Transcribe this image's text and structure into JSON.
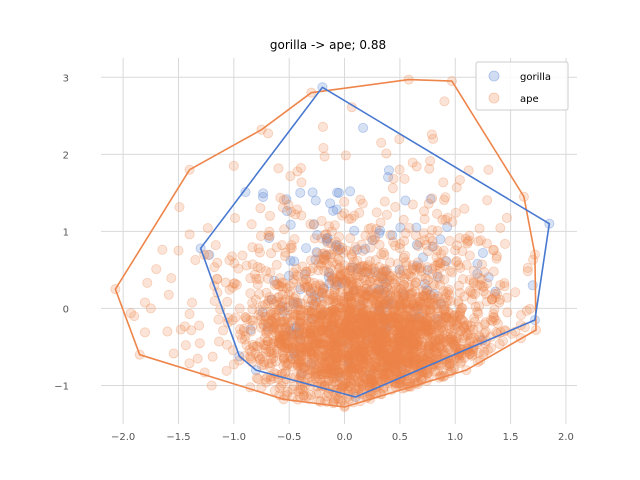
{
  "chart_data": {
    "type": "scatter",
    "title": "gorilla -> ape; 0.88",
    "xlabel": "",
    "ylabel": "",
    "xlim": [
      -2.2,
      2.1
    ],
    "ylim": [
      -1.5,
      3.25
    ],
    "x_ticks": [
      -2.0,
      -1.5,
      -1.0,
      -0.5,
      0.0,
      0.5,
      1.0,
      1.5,
      2.0
    ],
    "x_tick_labels": [
      "−2.0",
      "−1.5",
      "−1.0",
      "−0.5",
      "0.0",
      "0.5",
      "1.0",
      "1.5",
      "2.0"
    ],
    "y_ticks": [
      -1,
      0,
      1,
      2,
      3
    ],
    "y_tick_labels": [
      "−1",
      "0",
      "1",
      "2",
      "3"
    ],
    "grid": true,
    "legend_position": "top-right",
    "series": [
      {
        "name": "gorilla",
        "color": "#4878cf",
        "point_alpha": 0.22,
        "cloud": {
          "n": 140,
          "center": [
            0.05,
            0.3
          ],
          "spread": [
            0.55,
            0.75
          ],
          "seed": 11
        },
        "points": [
          [
            -0.2,
            2.87
          ],
          [
            1.85,
            1.1
          ],
          [
            1.72,
            -0.15
          ],
          [
            0.1,
            -1.15
          ],
          [
            -0.8,
            -0.8
          ],
          [
            -0.95,
            -0.62
          ],
          [
            -1.3,
            0.78
          ],
          [
            1.25,
            0.72
          ],
          [
            1.2,
            0.45
          ],
          [
            0.55,
            1.4
          ],
          [
            -0.05,
            1.5
          ],
          [
            0.05,
            1.52
          ],
          [
            1.7,
            0.3
          ],
          [
            -0.4,
            1.5
          ]
        ],
        "hull": [
          [
            -0.2,
            2.87
          ],
          [
            1.85,
            1.1
          ],
          [
            1.72,
            -0.15
          ],
          [
            0.1,
            -1.15
          ],
          [
            -0.8,
            -0.8
          ],
          [
            -0.95,
            -0.62
          ],
          [
            -1.3,
            0.78
          ]
        ]
      },
      {
        "name": "ape",
        "color": "#ee854a",
        "point_alpha": 0.22,
        "cloud": {
          "n": 2200,
          "center": [
            0.25,
            -0.45
          ],
          "spread": [
            0.55,
            0.45
          ],
          "seed": 7
        },
        "halo": {
          "n": 600,
          "center": [
            0.1,
            0.15
          ],
          "spread": [
            0.75,
            0.8
          ],
          "seed": 23
        },
        "points": [
          [
            -2.07,
            0.25
          ],
          [
            -1.9,
            -0.1
          ],
          [
            -1.85,
            -0.6
          ],
          [
            -1.4,
            1.8
          ],
          [
            -1.5,
            0.75
          ],
          [
            -0.75,
            2.32
          ],
          [
            -0.3,
            2.8
          ],
          [
            0.58,
            2.97
          ],
          [
            0.97,
            2.95
          ],
          [
            1.62,
            1.45
          ],
          [
            1.72,
            0.7
          ],
          [
            1.73,
            -0.28
          ],
          [
            1.1,
            -0.8
          ],
          [
            0.0,
            -1.28
          ],
          [
            -0.55,
            -1.18
          ],
          [
            -1.2,
            -1.0
          ],
          [
            -1.6,
            -0.3
          ],
          [
            -1.75,
            0.0
          ],
          [
            0.8,
            2.2
          ],
          [
            1.3,
            1.8
          ],
          [
            -1.0,
            1.85
          ]
        ],
        "hull": [
          [
            -2.07,
            0.25
          ],
          [
            -1.4,
            1.8
          ],
          [
            -0.75,
            2.32
          ],
          [
            -0.3,
            2.8
          ],
          [
            0.58,
            2.97
          ],
          [
            0.97,
            2.95
          ],
          [
            1.62,
            1.45
          ],
          [
            1.72,
            0.7
          ],
          [
            1.73,
            -0.28
          ],
          [
            1.1,
            -0.8
          ],
          [
            0.0,
            -1.28
          ],
          [
            -0.55,
            -1.18
          ],
          [
            -1.85,
            -0.6
          ]
        ]
      }
    ]
  }
}
